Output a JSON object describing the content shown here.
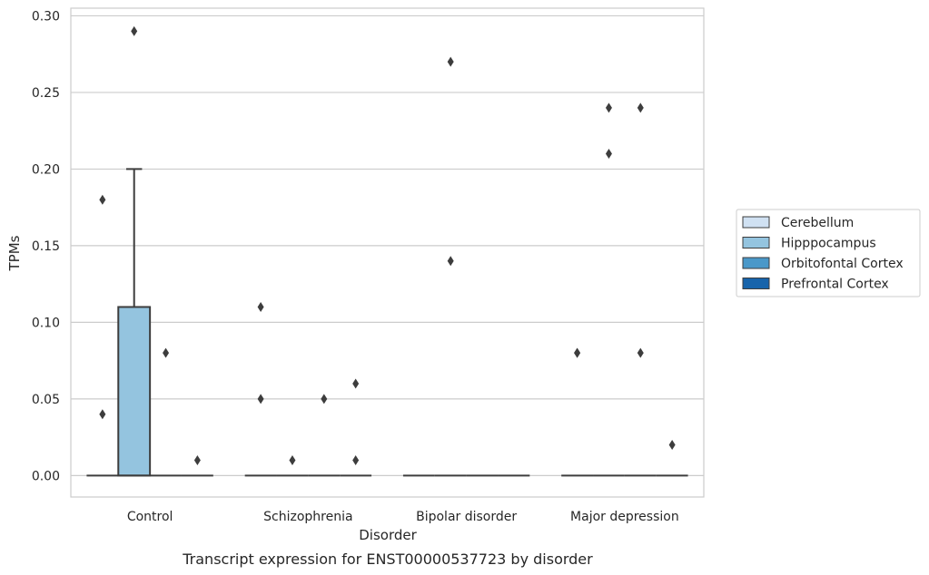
{
  "chart_data": {
    "type": "box",
    "xlabel": "Disorder",
    "ylabel": "TPMs",
    "caption": "Transcript expression for ENST00000537723 by disorder",
    "ylim": [
      -0.014,
      0.305
    ],
    "yticks": [
      "0.00",
      "0.05",
      "0.10",
      "0.15",
      "0.20",
      "0.25",
      "0.30"
    ],
    "grid": "horizontal",
    "legend_position": "right",
    "categories": [
      "Control",
      "Schizophrenia",
      "Bipolar disorder",
      "Major depression"
    ],
    "series": [
      {
        "name": "Cerebellum",
        "color": "#d0e1f2",
        "boxes": [
          {
            "q1": 0,
            "median": 0,
            "q3": 0,
            "whisker_low": 0,
            "whisker_high": 0,
            "outliers": [
              0.04,
              0.18
            ]
          },
          {
            "q1": 0,
            "median": 0,
            "q3": 0,
            "whisker_low": 0,
            "whisker_high": 0,
            "outliers": [
              0.11,
              0.05
            ]
          },
          {
            "q1": 0,
            "median": 0,
            "q3": 0,
            "whisker_low": 0,
            "whisker_high": 0,
            "outliers": []
          },
          {
            "q1": 0,
            "median": 0,
            "q3": 0,
            "whisker_low": 0,
            "whisker_high": 0,
            "outliers": [
              0.08,
              0.08
            ]
          }
        ]
      },
      {
        "name": "Hipppocampus",
        "color": "#94c4df",
        "boxes": [
          {
            "q1": 0,
            "median": 0,
            "q3": 0.11,
            "whisker_low": 0,
            "whisker_high": 0.2,
            "outliers": [
              0.29
            ]
          },
          {
            "q1": 0,
            "median": 0,
            "q3": 0,
            "whisker_low": 0,
            "whisker_high": 0,
            "outliers": [
              0.01
            ]
          },
          {
            "q1": 0,
            "median": 0,
            "q3": 0,
            "whisker_low": 0,
            "whisker_high": 0,
            "outliers": [
              0.27,
              0.14
            ]
          },
          {
            "q1": 0,
            "median": 0,
            "q3": 0,
            "whisker_low": 0,
            "whisker_high": 0,
            "outliers": [
              0.24,
              0.21
            ]
          }
        ]
      },
      {
        "name": "Orbitofontal Cortex",
        "color": "#4a98c9",
        "boxes": [
          {
            "q1": 0,
            "median": 0,
            "q3": 0,
            "whisker_low": 0,
            "whisker_high": 0,
            "outliers": [
              0.08
            ]
          },
          {
            "q1": 0,
            "median": 0,
            "q3": 0,
            "whisker_low": 0,
            "whisker_high": 0,
            "outliers": [
              0.05
            ]
          },
          {
            "q1": 0,
            "median": 0,
            "q3": 0,
            "whisker_low": 0,
            "whisker_high": 0,
            "outliers": []
          },
          {
            "q1": 0,
            "median": 0,
            "q3": 0,
            "whisker_low": 0,
            "whisker_high": 0,
            "outliers": [
              0.24,
              0.08
            ]
          }
        ]
      },
      {
        "name": "Prefrontal Cortex",
        "color": "#1764ab",
        "boxes": [
          {
            "q1": 0,
            "median": 0,
            "q3": 0,
            "whisker_low": 0,
            "whisker_high": 0,
            "outliers": [
              0.01
            ]
          },
          {
            "q1": 0,
            "median": 0,
            "q3": 0,
            "whisker_low": 0,
            "whisker_high": 0,
            "outliers": [
              0.06,
              0.01
            ]
          },
          {
            "q1": 0,
            "median": 0,
            "q3": 0,
            "whisker_low": 0,
            "whisker_high": 0,
            "outliers": []
          },
          {
            "q1": 0,
            "median": 0,
            "q3": 0,
            "whisker_low": 0,
            "whisker_high": 0,
            "outliers": [
              0.02
            ]
          }
        ]
      }
    ]
  }
}
